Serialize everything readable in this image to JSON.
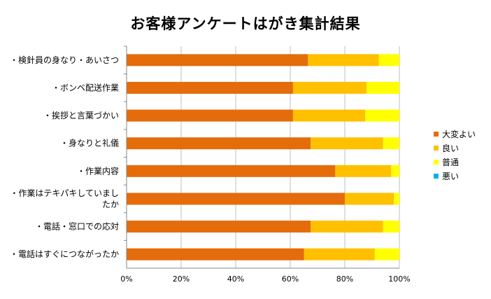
{
  "chart_data": {
    "type": "bar",
    "orientation": "horizontal",
    "stacked": "percent",
    "title": "お客様アンケートはがき集計結果",
    "categories": [
      "・検針員の身なり・あいさつ",
      "・ボンベ配送作業",
      "・挨拶と言葉づかい",
      "・身なりと礼儀",
      "・作業内容",
      "・作業はテキパキしていましたか",
      "・電話・窓口での応対",
      "・電話はすぐにつながったか"
    ],
    "category_lines": [
      [
        "・検針員の身なり・あいさつ"
      ],
      [
        "・ボンベ配送作業"
      ],
      [
        "・挨拶と言葉づかい"
      ],
      [
        "・身なりと礼儀"
      ],
      [
        "・作業内容"
      ],
      [
        "・作業はテキパキしていまし",
        "たか"
      ],
      [
        "・電話・窓口での応対"
      ],
      [
        "・電話はすぐにつながったか"
      ]
    ],
    "series": [
      {
        "name": "大変よい",
        "color": "#E46C0A",
        "values": [
          66.5,
          61.0,
          61.0,
          67.5,
          76.5,
          80.0,
          67.5,
          65.0
        ]
      },
      {
        "name": "良い",
        "color": "#FFC000",
        "values": [
          26.0,
          27.0,
          26.5,
          26.5,
          20.5,
          18.0,
          26.5,
          26.0
        ]
      },
      {
        "name": "普通",
        "color": "#FFFF00",
        "values": [
          7.5,
          12.0,
          12.5,
          6.0,
          3.0,
          2.0,
          6.0,
          9.0
        ]
      },
      {
        "name": "悪い",
        "color": "#00B0F0",
        "values": [
          0,
          0,
          0,
          0,
          0,
          0,
          0,
          0
        ]
      }
    ],
    "x_ticks": [
      "0%",
      "20%",
      "40%",
      "60%",
      "80%",
      "100%"
    ],
    "xlim": [
      0,
      100
    ],
    "grid": true,
    "legend_position": "right"
  }
}
